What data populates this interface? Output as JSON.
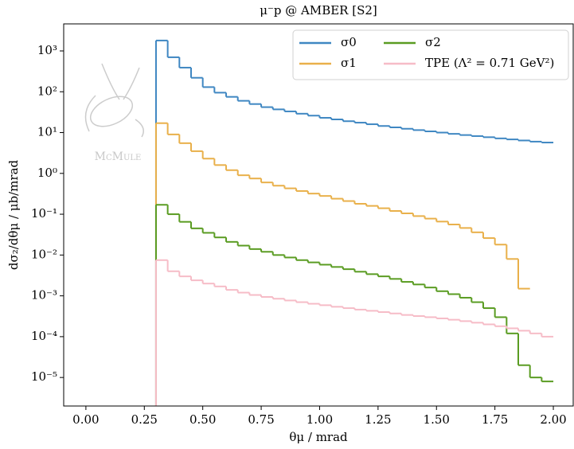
{
  "chart_data": {
    "type": "step",
    "title": "μ⁻p @ AMBER   [S2]",
    "x_label": "θμ / mrad",
    "y_label": "dσ₂/dθμ / μb/mrad",
    "watermark": "McMule",
    "log_y": true,
    "legend": "upper right",
    "x": [
      0.3,
      0.35,
      0.4,
      0.45,
      0.5,
      0.55,
      0.6,
      0.65,
      0.7,
      0.75,
      0.8,
      0.85,
      0.9,
      0.95,
      1.0,
      1.05,
      1.1,
      1.15,
      1.2,
      1.25,
      1.3,
      1.35,
      1.4,
      1.45,
      1.5,
      1.55,
      1.6,
      1.65,
      1.7,
      1.75,
      1.8,
      1.85,
      1.9,
      1.95
    ],
    "series": [
      {
        "name": "σ0",
        "color": "#3f87c2",
        "values": [
          1800,
          700,
          390,
          220,
          130,
          95,
          75,
          60,
          50,
          42,
          37,
          33,
          29,
          26,
          23,
          21,
          19,
          17.5,
          16,
          14.5,
          13.4,
          12.4,
          11.5,
          10.7,
          10,
          9.3,
          8.7,
          8.2,
          7.7,
          7.2,
          6.8,
          6.4,
          6.0,
          5.7
        ]
      },
      {
        "name": "σ1",
        "color": "#e9b04a",
        "values": [
          17,
          9,
          5.5,
          3.5,
          2.3,
          1.6,
          1.2,
          0.9,
          0.75,
          0.6,
          0.5,
          0.43,
          0.37,
          0.32,
          0.28,
          0.24,
          0.21,
          0.18,
          0.16,
          0.14,
          0.12,
          0.105,
          0.09,
          0.078,
          0.066,
          0.056,
          0.046,
          0.036,
          0.026,
          0.018,
          0.008,
          0.0015,
          null,
          null
        ]
      },
      {
        "name": "σ2",
        "color": "#5a9c22",
        "values": [
          0.17,
          0.1,
          0.065,
          0.045,
          0.035,
          0.027,
          0.021,
          0.017,
          0.014,
          0.012,
          0.01,
          0.0087,
          0.0075,
          0.0066,
          0.0058,
          0.0051,
          0.0045,
          0.0039,
          0.0034,
          0.003,
          0.0026,
          0.0022,
          0.0019,
          0.0016,
          0.0013,
          0.0011,
          0.0009,
          0.0007,
          0.0005,
          0.0003,
          0.00012,
          2e-05,
          1e-05,
          8e-06
        ]
      },
      {
        "name": "TPE (Λ² = 0.71 GeV²)",
        "color": "#f6bcc7",
        "values": [
          0.0075,
          0.004,
          0.003,
          0.0024,
          0.002,
          0.0017,
          0.0014,
          0.0012,
          0.00105,
          0.00094,
          0.00085,
          0.00077,
          0.0007,
          0.00064,
          0.00059,
          0.00054,
          0.0005,
          0.00046,
          0.00043,
          0.0004,
          0.00037,
          0.00034,
          0.00032,
          0.0003,
          0.00028,
          0.00026,
          0.00024,
          0.00022,
          0.0002,
          0.00018,
          0.00016,
          0.00014,
          0.00012,
          0.0001
        ]
      }
    ],
    "xlim": [
      -0.095,
      2.085
    ],
    "ylim": [
      2e-06,
      4600
    ],
    "xticks": [
      {
        "value": 0,
        "label": "0.00"
      },
      {
        "value": 0.25,
        "label": "0.25"
      },
      {
        "value": 0.5,
        "label": "0.50"
      },
      {
        "value": 0.75,
        "label": "0.75"
      },
      {
        "value": 1,
        "label": "1.00"
      },
      {
        "value": 1.25,
        "label": "1.25"
      },
      {
        "value": 1.5,
        "label": "1.50"
      },
      {
        "value": 1.75,
        "label": "1.75"
      },
      {
        "value": 2,
        "label": "2.00"
      }
    ],
    "yticks": [
      {
        "value": 1e-05,
        "label": "10⁻⁵"
      },
      {
        "value": 0.0001,
        "label": "10⁻⁴"
      },
      {
        "value": 0.001,
        "label": "10⁻³"
      },
      {
        "value": 0.01,
        "label": "10⁻²"
      },
      {
        "value": 0.1,
        "label": "10⁻¹"
      },
      {
        "value": 1,
        "label": "10⁰"
      },
      {
        "value": 10,
        "label": "10¹"
      },
      {
        "value": 100,
        "label": "10²"
      },
      {
        "value": 1000,
        "label": "10³"
      }
    ]
  }
}
